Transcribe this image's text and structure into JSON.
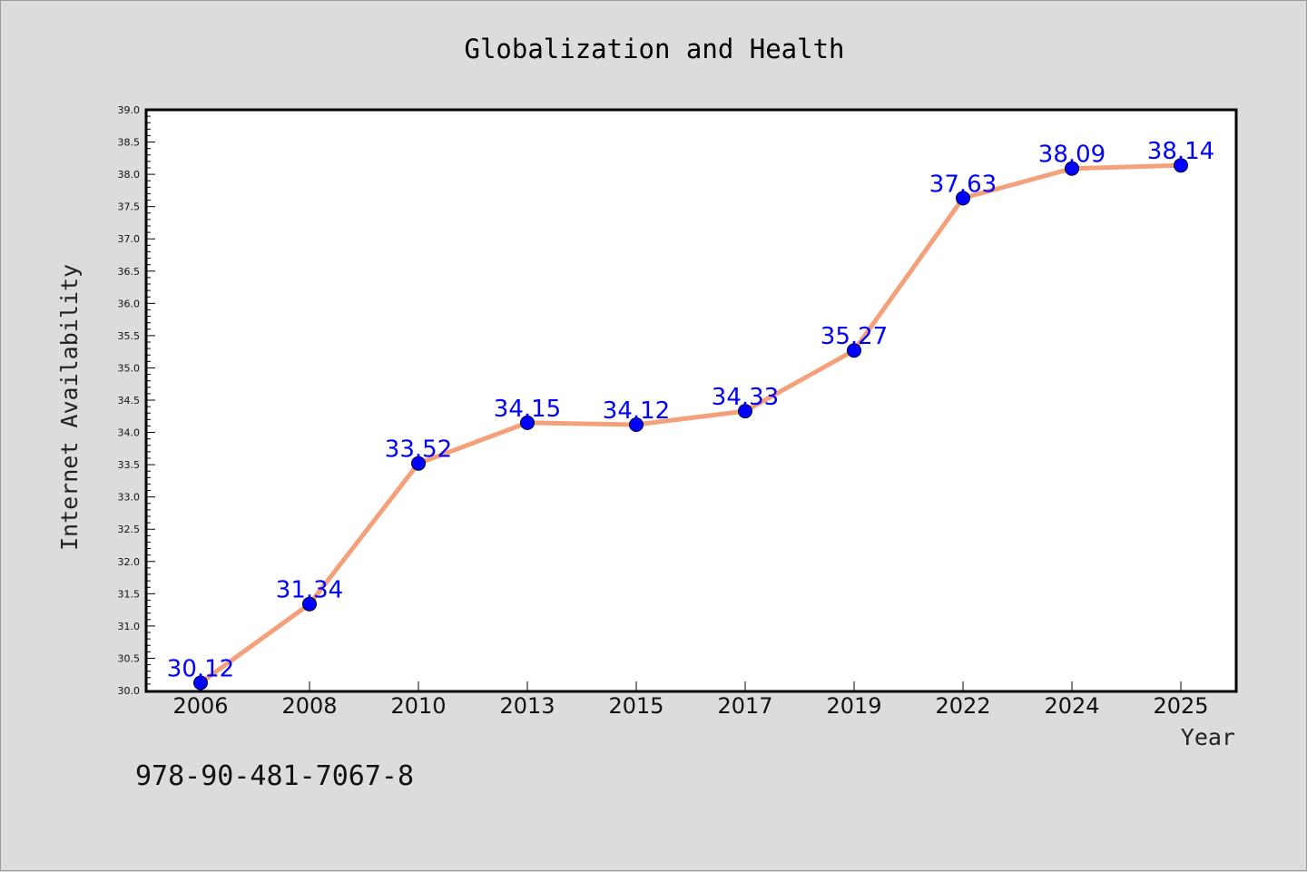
{
  "chart_data": {
    "type": "line",
    "title": "Globalization and Health",
    "xlabel": "Year",
    "ylabel": "Internet Availability",
    "categories": [
      "2006",
      "2008",
      "2010",
      "2013",
      "2015",
      "2017",
      "2019",
      "2022",
      "2024",
      "2025"
    ],
    "series": [
      {
        "values": [
          30.12,
          31.34,
          33.52,
          34.15,
          34.12,
          34.33,
          35.27,
          37.63,
          38.09,
          38.14
        ],
        "data_labels": [
          "30.12",
          "31.34",
          "33.52",
          "34.15",
          "34.12",
          "34.33",
          "35.27",
          "37.63",
          "38.09",
          "38.14"
        ],
        "line_color": "#f4a07a",
        "marker_color": "#0000ff"
      }
    ],
    "ylim": [
      30.0,
      39.0
    ],
    "yticks": [
      "30.0",
      "30.5",
      "31.0",
      "31.5",
      "32.0",
      "32.5",
      "33.0",
      "33.5",
      "34.0",
      "34.5",
      "35.0",
      "35.5",
      "36.0",
      "36.5",
      "37.0",
      "37.5",
      "38.0",
      "38.5",
      "39.0"
    ],
    "grid": false,
    "legend": "none",
    "background_color": "#dcdcdc",
    "plot_background_color": "#ffffff"
  },
  "annotations": {
    "isbn": "978-90-481-7067-8"
  }
}
